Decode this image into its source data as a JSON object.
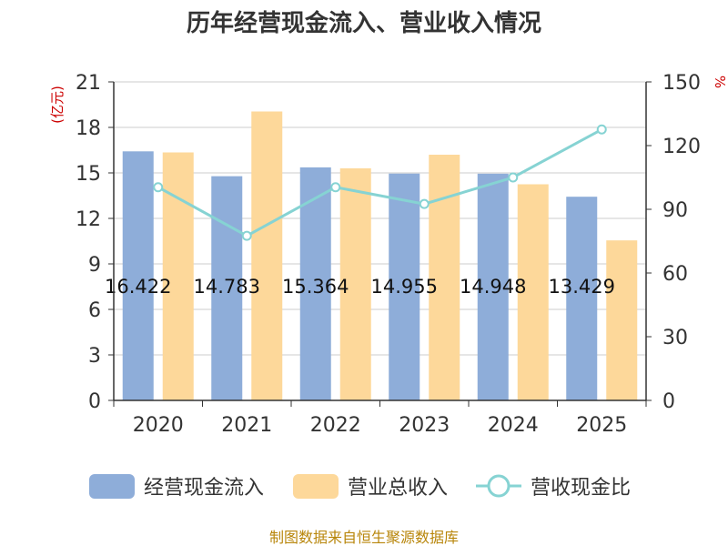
{
  "chart_data": {
    "type": "bar",
    "title": "历年经营现金流入、营业收入情况",
    "categories": [
      "2020",
      "2021",
      "2022",
      "2023",
      "2024",
      "2025"
    ],
    "y_left": {
      "unit_label": "(亿元)",
      "min": 0,
      "max": 21,
      "ticks": [
        0,
        3,
        6,
        9,
        12,
        15,
        18,
        21
      ]
    },
    "y_right": {
      "unit_label": "%",
      "min": 0,
      "max": 150,
      "ticks": [
        0,
        30,
        60,
        90,
        120,
        150
      ]
    },
    "series": [
      {
        "name": "经营现金流入",
        "kind": "bar",
        "axis": "left",
        "color": "#8eadd9",
        "values": [
          16.422,
          14.783,
          15.364,
          14.955,
          14.948,
          13.429
        ],
        "data_labels": [
          "16.422",
          "14.783",
          "15.364",
          "14.955",
          "14.948",
          "13.429"
        ]
      },
      {
        "name": "营业总收入",
        "kind": "bar",
        "axis": "left",
        "color": "#fdd89a",
        "values": [
          16.35,
          19.05,
          15.3,
          16.2,
          14.25,
          10.55
        ]
      },
      {
        "name": "营收现金比",
        "kind": "line",
        "axis": "right",
        "color": "#86d3d3",
        "values": [
          100.4,
          77.5,
          100.4,
          92.5,
          105.0,
          127.6
        ]
      }
    ],
    "grid": true,
    "legend_position": "bottom"
  },
  "footer": {
    "source": "制图数据来自恒生聚源数据库"
  },
  "colors": {
    "title": "#333333",
    "axis": "#333333",
    "grid": "#cccccc",
    "unit": "#cc0000",
    "source": "#b8860b"
  }
}
